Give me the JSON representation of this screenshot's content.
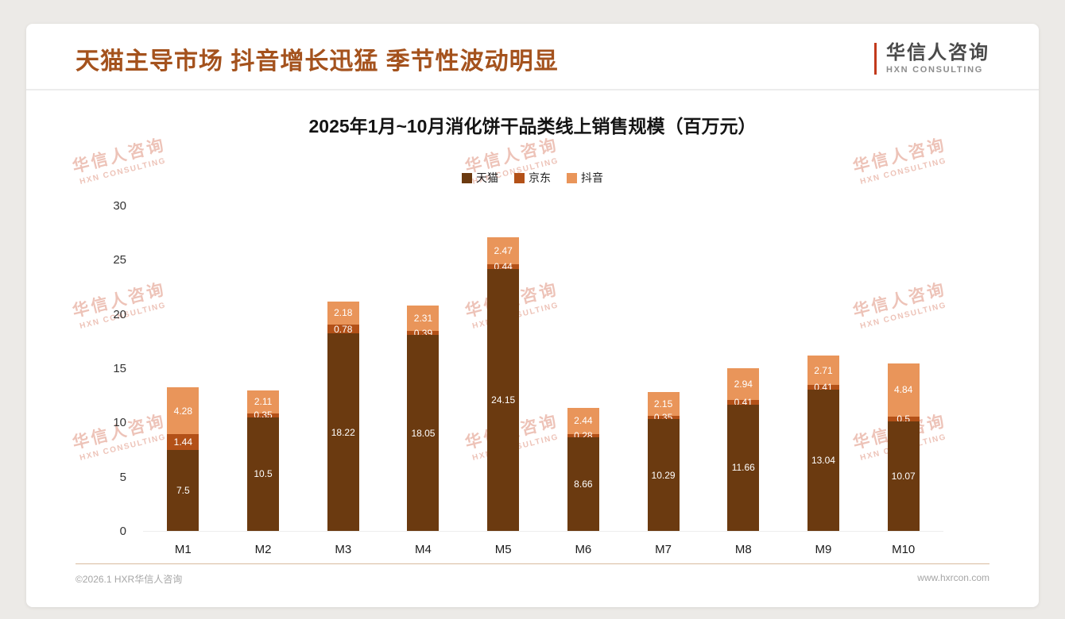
{
  "page": {
    "title": "天猫主导市场 抖音增长迅猛 季节性波动明显",
    "logo": {
      "cn": "华信人咨询",
      "en": "HXN CONSULTING"
    },
    "watermark": {
      "cn": "华信人咨询",
      "en": "HXN CONSULTING"
    },
    "footer": {
      "left": "©2026.1 HXR华信人咨询",
      "right": "www.hxrcon.com"
    }
  },
  "colors": {
    "accent": "#A4521D",
    "logo_accent": "#C23A1C",
    "watermark": "#D97B63",
    "tmall": "#6B3A10",
    "jd": "#B35118",
    "douyin": "#E9955A"
  },
  "chart_data": {
    "type": "bar",
    "stacked": true,
    "title": "2025年1月~10月消化饼干品类线上销售规模（百万元）",
    "unit": "百万元",
    "categories": [
      "M1",
      "M2",
      "M3",
      "M4",
      "M5",
      "M6",
      "M7",
      "M8",
      "M9",
      "M10"
    ],
    "series": [
      {
        "name": "天猫",
        "color": "#6B3A10",
        "values": [
          7.5,
          10.5,
          18.22,
          18.05,
          24.15,
          8.66,
          10.29,
          11.66,
          13.04,
          10.07
        ]
      },
      {
        "name": "京东",
        "color": "#B35118",
        "values": [
          1.44,
          0.35,
          0.78,
          0.39,
          0.44,
          0.28,
          0.35,
          0.41,
          0.41,
          0.5
        ]
      },
      {
        "name": "抖音",
        "color": "#E9955A",
        "values": [
          4.28,
          2.11,
          2.18,
          2.31,
          2.47,
          2.44,
          2.15,
          2.94,
          2.71,
          4.84
        ]
      }
    ],
    "ylim": [
      0,
      30
    ],
    "ytick_step": 5,
    "yticks": [
      0,
      5,
      10,
      15,
      20,
      25,
      30
    ],
    "legend_position": "top",
    "grid": false,
    "value_labels": true
  }
}
